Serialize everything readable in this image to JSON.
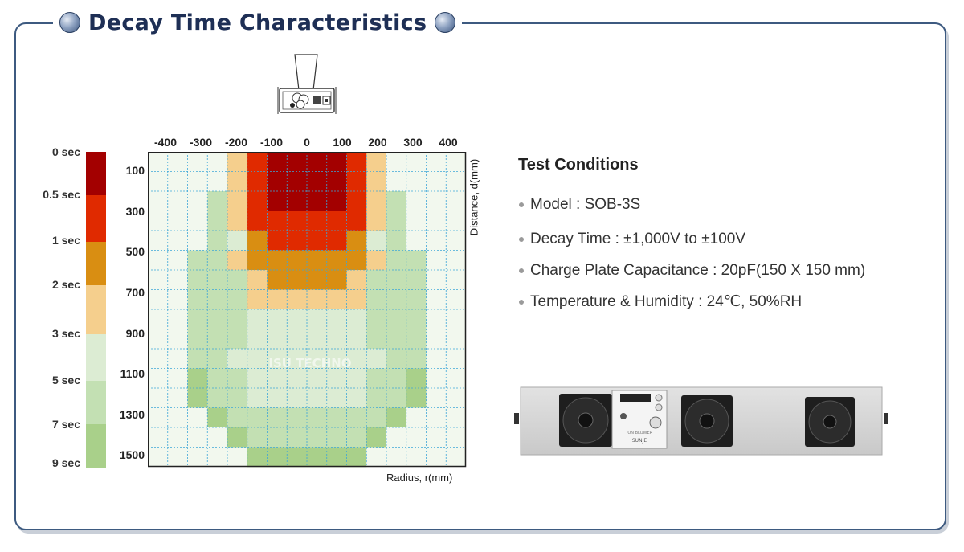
{
  "page": {
    "title": "Decay Time Characteristics"
  },
  "legend": {
    "items": [
      {
        "label": "0 sec",
        "color": "#a30000"
      },
      {
        "label": "0.5 sec",
        "color": "#e02a00"
      },
      {
        "label": "1 sec",
        "color": "#d98e12"
      },
      {
        "label": "2 sec",
        "color": "#f5cf8d"
      },
      {
        "label": "3 sec",
        "color": "#dcecd3"
      },
      {
        "label": "5 sec",
        "color": "#c3e0b3"
      },
      {
        "label": "7 sec",
        "color": "#a9d08a"
      },
      {
        "label": "9 sec",
        "color": ""
      }
    ]
  },
  "chart_data": {
    "type": "heatmap",
    "xlabel": "Radius, r(mm)",
    "ylabel": "Distance, d(mm)",
    "x_ticks": [
      -400,
      -300,
      -200,
      -100,
      0,
      100,
      200,
      300,
      400
    ],
    "y_ticks": [
      100,
      300,
      500,
      700,
      900,
      1100,
      1300,
      1500
    ],
    "xlim": [
      -450,
      450
    ],
    "ylim": [
      0,
      1550
    ],
    "grid": true,
    "watermark": "ISU TECHNO",
    "palette": [
      "#a30000",
      "#e02a00",
      "#d98e12",
      "#f5cf8d",
      "#dcecd3",
      "#c3e0b3",
      "#a9d08a",
      "#f2f8ee"
    ],
    "palette_levels": [
      "0 sec",
      "0.5 sec",
      "1 sec",
      "2 sec",
      "3 sec",
      "5 sec",
      "7 sec",
      "> 9 sec"
    ],
    "x": [
      -350,
      -300,
      -250,
      -200,
      -150,
      -100,
      -50,
      0,
      50,
      100,
      150,
      200,
      250,
      300,
      350,
      400
    ],
    "y": [
      0,
      100,
      200,
      300,
      400,
      500,
      600,
      700,
      800,
      900,
      1000,
      1100,
      1200,
      1300,
      1400,
      1500
    ],
    "levels": [
      [
        7,
        7,
        7,
        7,
        3,
        1,
        0,
        0,
        0,
        0,
        1,
        3,
        7,
        7,
        7,
        7
      ],
      [
        7,
        7,
        7,
        7,
        3,
        1,
        0,
        0,
        0,
        0,
        1,
        3,
        7,
        7,
        7,
        7
      ],
      [
        7,
        7,
        7,
        5,
        3,
        1,
        0,
        0,
        0,
        0,
        1,
        3,
        5,
        7,
        7,
        7
      ],
      [
        7,
        7,
        7,
        5,
        3,
        1,
        1,
        1,
        1,
        1,
        1,
        3,
        5,
        7,
        7,
        7
      ],
      [
        7,
        7,
        7,
        5,
        4,
        2,
        1,
        1,
        1,
        1,
        2,
        4,
        5,
        7,
        7,
        7
      ],
      [
        7,
        7,
        5,
        5,
        3,
        2,
        2,
        2,
        2,
        2,
        2,
        3,
        5,
        5,
        7,
        7
      ],
      [
        7,
        7,
        5,
        5,
        5,
        3,
        2,
        2,
        2,
        2,
        3,
        5,
        5,
        5,
        7,
        7
      ],
      [
        7,
        7,
        5,
        5,
        5,
        3,
        3,
        3,
        3,
        3,
        3,
        5,
        5,
        5,
        7,
        7
      ],
      [
        7,
        7,
        5,
        5,
        5,
        4,
        4,
        4,
        4,
        4,
        4,
        5,
        5,
        5,
        7,
        7
      ],
      [
        7,
        7,
        5,
        5,
        5,
        4,
        4,
        4,
        4,
        4,
        4,
        5,
        5,
        5,
        7,
        7
      ],
      [
        7,
        7,
        5,
        5,
        4,
        4,
        4,
        4,
        4,
        4,
        4,
        4,
        5,
        5,
        7,
        7
      ],
      [
        7,
        7,
        6,
        5,
        5,
        4,
        4,
        4,
        4,
        4,
        4,
        5,
        5,
        6,
        7,
        7
      ],
      [
        7,
        7,
        6,
        5,
        5,
        4,
        4,
        4,
        4,
        4,
        4,
        5,
        5,
        6,
        7,
        7
      ],
      [
        7,
        7,
        7,
        6,
        5,
        5,
        5,
        5,
        5,
        5,
        5,
        5,
        6,
        7,
        7,
        7
      ],
      [
        7,
        7,
        7,
        7,
        6,
        5,
        5,
        5,
        5,
        5,
        5,
        6,
        7,
        7,
        7,
        7
      ],
      [
        7,
        7,
        7,
        7,
        7,
        6,
        6,
        6,
        6,
        6,
        6,
        7,
        7,
        7,
        7,
        7
      ]
    ]
  },
  "test_conditions": {
    "title": "Test Conditions",
    "items": [
      "Model : SOB-3S",
      "Decay Time : ±1,000V to ±100V",
      "Charge Plate Capacitance : 20pF(150 X 150 mm)",
      "Temperature & Humidity : 24℃, 50%RH"
    ]
  },
  "product": {
    "panel_text": "ION BLOWER",
    "brand": "SUNJE"
  }
}
